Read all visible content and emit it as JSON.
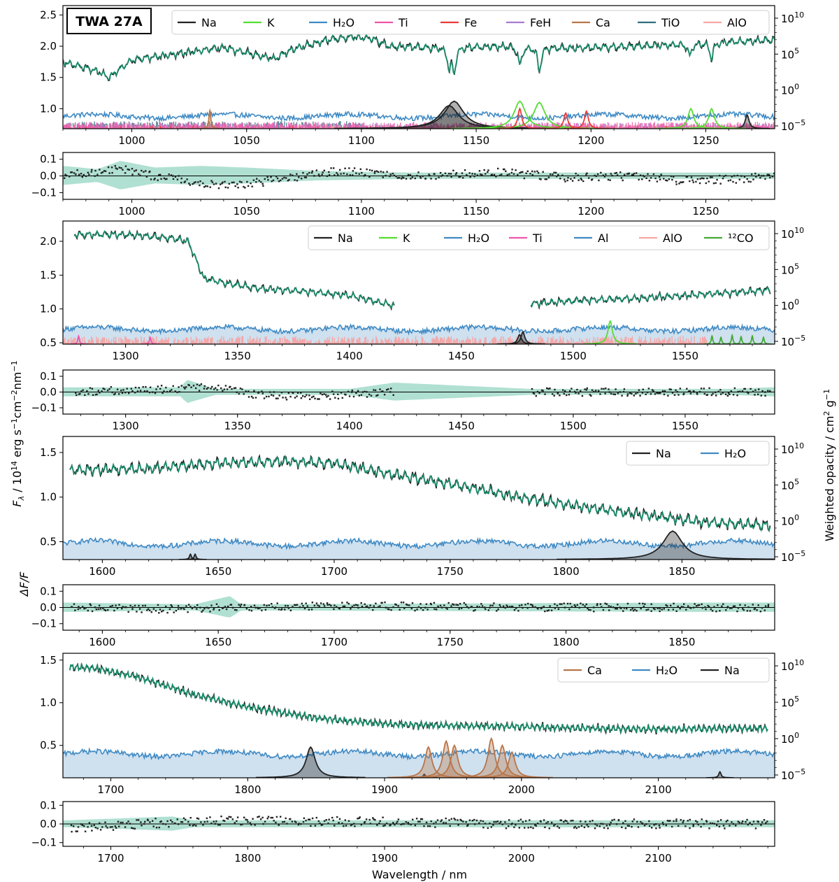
{
  "figure": {
    "title_box": "TWA 27A",
    "xlabel": "Wavelength / nm",
    "ylabel_flux": "F_λ / 10^14 erg s^-1 cm^-2 nm^-1",
    "ylabel_flux_parts": [
      "F",
      "λ",
      " / 10",
      "14",
      " erg s",
      "−1",
      "cm",
      "−2",
      "nm",
      "−1"
    ],
    "ylabel_resid": "ΔF/F",
    "ylabel_opacity": "Weighted opacity / cm² g⁻¹",
    "ylabel_opacity_parts": [
      "Weighted opacity / cm",
      "2",
      " g",
      "−1"
    ],
    "colors": {
      "data": "#1a1a1a",
      "model": "#1a8c6a",
      "model_band": "#8fd3bd",
      "data_err": "#b8b8b8",
      "Na": "#222222",
      "K": "#55dd33",
      "H2O": "#3f8ac4",
      "Ti": "#ee55aa",
      "Fe": "#e83a3a",
      "FeH": "#a77bd1",
      "Ca": "#b87548",
      "TiO": "#2f6e80",
      "AlO": "#f5a6a6",
      "Al": "#3f8ac4",
      "12CO": "#44aa33",
      "h2o_fill": "#cfe0ef"
    }
  },
  "chart_data": [
    {
      "type": "line",
      "name": "segment-1",
      "xlim": [
        970,
        1280
      ],
      "xticks": [
        1000,
        1050,
        1100,
        1150,
        1200,
        1250
      ],
      "xticklabels": [
        "1000",
        "1050",
        "1100",
        "1150",
        "1200",
        "1250"
      ],
      "ylim": [
        0.68,
        2.65
      ],
      "yticks": [
        1.0,
        1.5,
        2.0,
        2.5
      ],
      "yticklabels": [
        "1.0",
        "1.5",
        "2.0",
        "2.5"
      ],
      "opacity_ticks": [
        "10^10",
        "10^5",
        "10^0",
        "10^-5"
      ],
      "resid_ylim": [
        -0.14,
        0.14
      ],
      "resid_yticks": [
        0.1,
        0.0,
        -0.1
      ],
      "resid_yticklabels": [
        "0.1",
        "0.0",
        "−0.1"
      ],
      "legend": [
        "Na",
        "K",
        "H2O",
        "Ti",
        "Fe",
        "FeH",
        "Ca",
        "TiO",
        "AlO"
      ],
      "legend_labels": [
        "Na",
        "K",
        "H₂O",
        "Ti",
        "Fe",
        "FeH",
        "Ca",
        "TiO",
        "AlO"
      ],
      "flux_trend": [
        [
          970,
          1.75
        ],
        [
          985,
          1.6
        ],
        [
          990,
          1.5
        ],
        [
          1000,
          1.78
        ],
        [
          1020,
          1.88
        ],
        [
          1040,
          1.98
        ],
        [
          1055,
          1.85
        ],
        [
          1062,
          1.8
        ],
        [
          1070,
          1.95
        ],
        [
          1085,
          2.1
        ],
        [
          1095,
          2.15
        ],
        [
          1105,
          2.12
        ],
        [
          1112,
          2.0
        ],
        [
          1130,
          1.98
        ],
        [
          1160,
          2.0
        ],
        [
          1190,
          1.97
        ],
        [
          1220,
          2.0
        ],
        [
          1250,
          2.05
        ],
        [
          1280,
          2.1
        ]
      ],
      "flux_noise": 0.04,
      "flux_range": [
        [
          970,
          1280
        ]
      ],
      "absorption_lines": [
        [
          1138.2,
          0.32
        ],
        [
          1140.4,
          0.38
        ],
        [
          1169,
          0.3
        ],
        [
          1177.5,
          0.38
        ],
        [
          1243,
          0.2
        ],
        [
          1252.5,
          0.25
        ]
      ],
      "h2o_level": 0.88,
      "fill_h2o": false,
      "species_peaks": [
        {
          "species": "Na",
          "x": 1138.2,
          "height": 1.05,
          "width": 5
        },
        {
          "species": "Na",
          "x": 1140.4,
          "height": 1.12,
          "width": 5
        },
        {
          "species": "Na",
          "x": 1268,
          "height": 0.9,
          "width": 1
        },
        {
          "species": "K",
          "x": 1169,
          "height": 1.12,
          "width": 3
        },
        {
          "species": "K",
          "x": 1177.5,
          "height": 1.1,
          "width": 3
        },
        {
          "species": "K",
          "x": 1243.5,
          "height": 1.0,
          "width": 1.5
        },
        {
          "species": "K",
          "x": 1252.5,
          "height": 1.0,
          "width": 1.5
        },
        {
          "species": "Fe",
          "x": 1169,
          "height": 1.0,
          "width": 1
        },
        {
          "species": "Fe",
          "x": 1189,
          "height": 0.93,
          "width": 1
        },
        {
          "species": "Fe",
          "x": 1198,
          "height": 0.96,
          "width": 1
        },
        {
          "species": "Ca",
          "x": 1034,
          "height": 0.97,
          "width": 0.5
        }
      ],
      "resid_band": [
        [
          970,
          0.06
        ],
        [
          985,
          0.04
        ],
        [
          995,
          0.09
        ],
        [
          1010,
          0.05
        ],
        [
          1030,
          0.06
        ],
        [
          1050,
          0.05
        ],
        [
          1080,
          0.03
        ],
        [
          1120,
          0.02
        ],
        [
          1200,
          0.02
        ],
        [
          1280,
          0.02
        ]
      ],
      "resid_trend": [
        [
          970,
          0.0
        ],
        [
          995,
          0.04
        ],
        [
          1010,
          0.0
        ],
        [
          1030,
          -0.04
        ],
        [
          1045,
          -0.06
        ],
        [
          1060,
          -0.03
        ],
        [
          1090,
          0.03
        ],
        [
          1120,
          0.0
        ],
        [
          1160,
          0.02
        ],
        [
          1190,
          -0.01
        ],
        [
          1220,
          0.0
        ],
        [
          1240,
          -0.03
        ],
        [
          1260,
          -0.02
        ],
        [
          1280,
          0.0
        ]
      ]
    },
    {
      "type": "line",
      "name": "segment-2",
      "xlim": [
        1272,
        1590
      ],
      "xticks": [
        1300,
        1350,
        1400,
        1450,
        1500,
        1550
      ],
      "xticklabels": [
        "1300",
        "1350",
        "1400",
        "1450",
        "1500",
        "1550"
      ],
      "ylim": [
        0.48,
        2.3
      ],
      "yticks": [
        0.5,
        1.0,
        1.5,
        2.0
      ],
      "yticklabels": [
        "0.5",
        "1.0",
        "1.5",
        "2.0"
      ],
      "opacity_ticks": [
        "10^10",
        "10^5",
        "10^0",
        "10^-5"
      ],
      "resid_ylim": [
        -0.14,
        0.14
      ],
      "resid_yticks": [
        0.1,
        0.0,
        -0.1
      ],
      "resid_yticklabels": [
        "0.1",
        "0.0",
        "−0.1"
      ],
      "legend": [
        "Na",
        "K",
        "H2O",
        "Ti",
        "Al",
        "AlO",
        "12CO"
      ],
      "legend_labels": [
        "Na",
        "K",
        "H₂O",
        "Ti",
        "Al",
        "AlO",
        "¹²CO"
      ],
      "flux_trend": [
        [
          1277,
          2.1
        ],
        [
          1300,
          2.1
        ],
        [
          1320,
          2.05
        ],
        [
          1328,
          2.0
        ],
        [
          1335,
          1.45
        ],
        [
          1345,
          1.38
        ],
        [
          1360,
          1.3
        ],
        [
          1380,
          1.26
        ],
        [
          1400,
          1.2
        ],
        [
          1420,
          1.05
        ],
        [
          1481,
          1.08
        ],
        [
          1500,
          1.12
        ],
        [
          1530,
          1.16
        ],
        [
          1560,
          1.22
        ],
        [
          1588,
          1.28
        ]
      ],
      "flux_noise": 0.035,
      "flux_range": [
        [
          1277,
          1420
        ],
        [
          1481,
          1588
        ]
      ],
      "absorption_lines": [],
      "h2o_level": 0.7,
      "fill_h2o": true,
      "species_peaks": [
        {
          "species": "Na",
          "x": 1476,
          "height": 0.62,
          "width": 1
        },
        {
          "species": "Na",
          "x": 1477.5,
          "height": 0.66,
          "width": 1
        },
        {
          "species": "K",
          "x": 1516.5,
          "height": 0.82,
          "width": 1.2
        },
        {
          "species": "Ti",
          "x": 1279,
          "height": 0.6,
          "width": 0.4
        },
        {
          "species": "Ti",
          "x": 1311,
          "height": 0.58,
          "width": 0.4
        },
        {
          "species": "12CO",
          "x": 1562,
          "height": 0.6,
          "width": 0.4
        },
        {
          "species": "12CO",
          "x": 1566,
          "height": 0.58,
          "width": 0.4
        },
        {
          "species": "12CO",
          "x": 1571,
          "height": 0.61,
          "width": 0.4
        },
        {
          "species": "12CO",
          "x": 1575,
          "height": 0.59,
          "width": 0.4
        },
        {
          "species": "12CO",
          "x": 1580,
          "height": 0.6,
          "width": 0.4
        },
        {
          "species": "12CO",
          "x": 1585,
          "height": 0.58,
          "width": 0.4
        }
      ],
      "resid_band": [
        [
          1277,
          0.03
        ],
        [
          1325,
          0.03
        ],
        [
          1327,
          0.08
        ],
        [
          1340,
          0.02
        ],
        [
          1400,
          0.02
        ],
        [
          1420,
          0.06
        ],
        [
          1481,
          0.02
        ],
        [
          1570,
          0.02
        ],
        [
          1588,
          0.03
        ]
      ],
      "resid_trend": [
        [
          1277,
          0.0
        ],
        [
          1320,
          0.02
        ],
        [
          1340,
          0.03
        ],
        [
          1360,
          -0.02
        ],
        [
          1380,
          -0.03
        ],
        [
          1420,
          0.0
        ],
        [
          1481,
          0.0
        ],
        [
          1588,
          0.0
        ]
      ]
    },
    {
      "type": "line",
      "name": "segment-3",
      "xlim": [
        1583,
        1890
      ],
      "xticks": [
        1600,
        1650,
        1700,
        1750,
        1800,
        1850
      ],
      "xticklabels": [
        "1600",
        "1650",
        "1700",
        "1750",
        "1800",
        "1850"
      ],
      "ylim": [
        0.3,
        1.68
      ],
      "yticks": [
        0.5,
        1.0,
        1.5
      ],
      "yticklabels": [
        "0.5",
        "1.0",
        "1.5"
      ],
      "opacity_ticks": [
        "10^10",
        "10^5",
        "10^0",
        "10^-5"
      ],
      "resid_ylim": [
        -0.14,
        0.14
      ],
      "resid_yticks": [
        0.1,
        0.0,
        -0.1
      ],
      "resid_yticklabels": [
        "0.1",
        "0.0",
        "−0.1"
      ],
      "legend": [
        "Na",
        "H2O"
      ],
      "legend_labels": [
        "Na",
        "H₂O"
      ],
      "flux_trend": [
        [
          1586,
          1.3
        ],
        [
          1620,
          1.32
        ],
        [
          1650,
          1.38
        ],
        [
          1680,
          1.4
        ],
        [
          1700,
          1.38
        ],
        [
          1720,
          1.28
        ],
        [
          1750,
          1.15
        ],
        [
          1780,
          1.0
        ],
        [
          1810,
          0.88
        ],
        [
          1840,
          0.78
        ],
        [
          1860,
          0.72
        ],
        [
          1888,
          0.68
        ]
      ],
      "flux_noise": 0.04,
      "flux_range": [
        [
          1586,
          1888
        ]
      ],
      "absorption_lines": [],
      "h2o_level": 0.48,
      "fill_h2o": true,
      "species_peaks": [
        {
          "species": "Na",
          "x": 1638,
          "height": 0.36,
          "width": 0.5
        },
        {
          "species": "Na",
          "x": 1640,
          "height": 0.36,
          "width": 0.5
        },
        {
          "species": "Na",
          "x": 1846,
          "height": 0.62,
          "width": 5
        }
      ],
      "resid_band": [
        [
          1586,
          0.03
        ],
        [
          1640,
          0.02
        ],
        [
          1655,
          0.07
        ],
        [
          1660,
          0.02
        ],
        [
          1860,
          0.03
        ],
        [
          1888,
          0.03
        ]
      ],
      "resid_trend": [
        [
          1586,
          0.0
        ],
        [
          1620,
          -0.01
        ],
        [
          1700,
          0.01
        ],
        [
          1780,
          0.0
        ],
        [
          1888,
          0.0
        ]
      ]
    },
    {
      "type": "line",
      "name": "segment-4",
      "xlim": [
        1665,
        2185
      ],
      "xticks": [
        1700,
        1800,
        1900,
        2000,
        2100
      ],
      "xticklabels": [
        "1700",
        "1800",
        "1900",
        "2000",
        "2100"
      ],
      "ylim": [
        0.12,
        1.58
      ],
      "yticks": [
        0.5,
        1.0,
        1.5
      ],
      "yticklabels": [
        "0.5",
        "1.0",
        "1.5"
      ],
      "opacity_ticks": [
        "10^10",
        "10^5",
        "10^0",
        "10^-5"
      ],
      "resid_ylim": [
        -0.12,
        0.12
      ],
      "resid_yticks": [
        0.1,
        0.0,
        -0.1
      ],
      "resid_yticklabels": [
        "0.1",
        "0.0",
        "−0.1"
      ],
      "legend": [
        "Ca",
        "H2O",
        "Na"
      ],
      "legend_labels": [
        "Ca",
        "H₂O",
        "Na"
      ],
      "flux_trend": [
        [
          1670,
          1.42
        ],
        [
          1690,
          1.4
        ],
        [
          1720,
          1.3
        ],
        [
          1760,
          1.1
        ],
        [
          1800,
          0.95
        ],
        [
          1850,
          0.82
        ],
        [
          1900,
          0.75
        ],
        [
          1950,
          0.73
        ],
        [
          2000,
          0.72
        ],
        [
          2050,
          0.7
        ],
        [
          2100,
          0.69
        ],
        [
          2180,
          0.7
        ]
      ],
      "flux_noise": 0.03,
      "flux_range": [
        [
          1670,
          2180
        ]
      ],
      "absorption_lines": [],
      "h2o_level": 0.4,
      "fill_h2o": true,
      "species_peaks": [
        {
          "species": "Na",
          "x": 1846,
          "height": 0.48,
          "width": 4
        },
        {
          "species": "Na",
          "x": 1929,
          "height": 0.16,
          "width": 1
        },
        {
          "species": "Na",
          "x": 2145,
          "height": 0.19,
          "width": 1
        },
        {
          "species": "Ca",
          "x": 1932,
          "height": 0.48,
          "width": 3
        },
        {
          "species": "Ca",
          "x": 1945,
          "height": 0.55,
          "width": 3
        },
        {
          "species": "Ca",
          "x": 1951,
          "height": 0.5,
          "width": 3
        },
        {
          "species": "Ca",
          "x": 1978,
          "height": 0.58,
          "width": 3
        },
        {
          "species": "Ca",
          "x": 1986,
          "height": 0.5,
          "width": 3
        },
        {
          "species": "Ca",
          "x": 1993,
          "height": 0.42,
          "width": 3
        }
      ],
      "resid_band": [
        [
          1670,
          0.02
        ],
        [
          1745,
          0.04
        ],
        [
          1760,
          0.02
        ],
        [
          2180,
          0.02
        ]
      ],
      "resid_trend": [
        [
          1670,
          -0.02
        ],
        [
          1720,
          0.0
        ],
        [
          1780,
          0.02
        ],
        [
          1900,
          0.01
        ],
        [
          2000,
          0.0
        ],
        [
          2180,
          0.0
        ]
      ]
    }
  ]
}
